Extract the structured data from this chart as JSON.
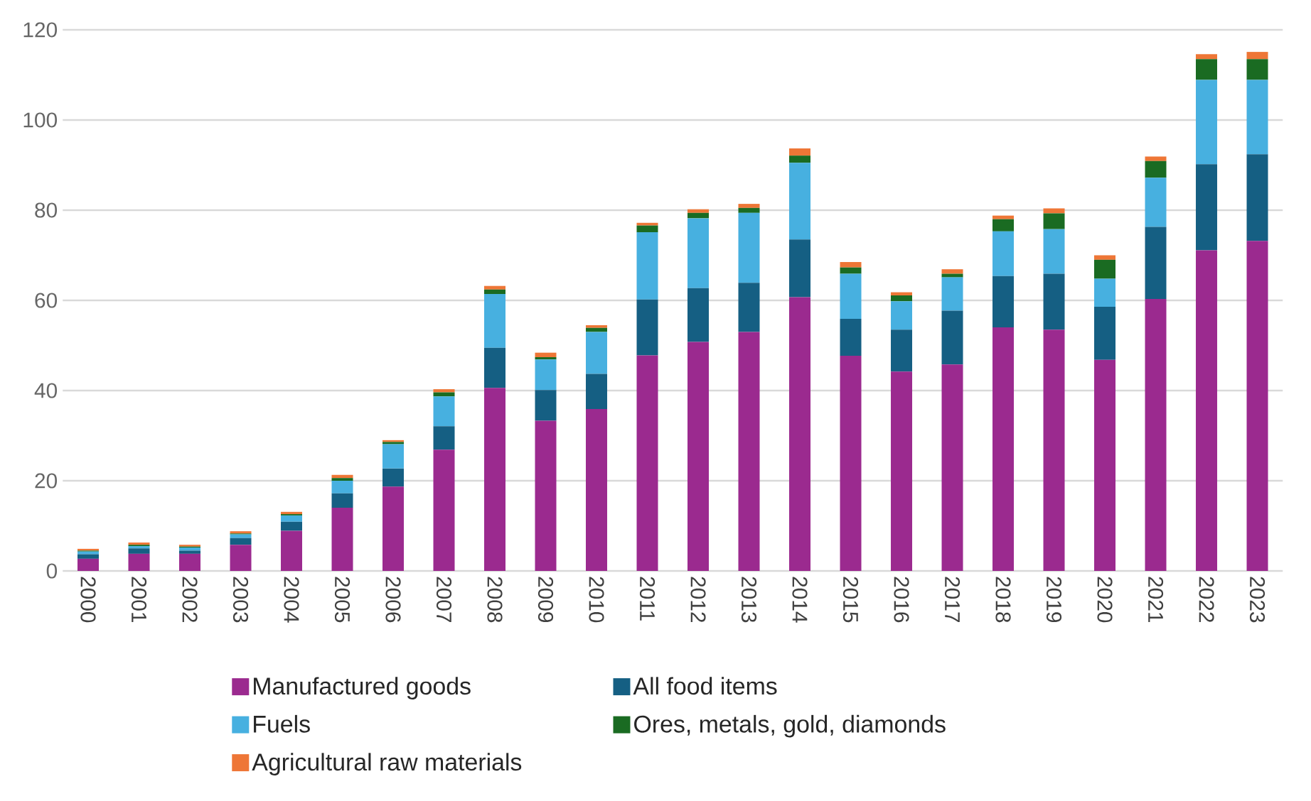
{
  "chart_data": {
    "type": "bar",
    "stacked": true,
    "categories": [
      "2000",
      "2001",
      "2002",
      "2003",
      "2004",
      "2005",
      "2006",
      "2007",
      "2008",
      "2009",
      "2010",
      "2011",
      "2012",
      "2013",
      "2014",
      "2015",
      "2016",
      "2017",
      "2018",
      "2019",
      "2020",
      "2021",
      "2022",
      "2023"
    ],
    "series": [
      {
        "name": "Manufactured goods",
        "color": "#9b2a8f",
        "values": [
          2.7,
          3.8,
          3.8,
          5.8,
          8.9,
          14.0,
          18.7,
          26.9,
          40.6,
          33.3,
          35.9,
          47.8,
          50.8,
          53.0,
          60.7,
          47.7,
          44.2,
          45.8,
          54.0,
          53.5,
          46.8,
          60.3,
          71.1,
          73.2
        ]
      },
      {
        "name": "All food items",
        "color": "#155f83",
        "values": [
          1.0,
          1.2,
          0.7,
          1.5,
          2.0,
          3.2,
          4.0,
          5.2,
          8.9,
          6.8,
          7.8,
          12.4,
          11.9,
          10.9,
          12.8,
          8.2,
          9.3,
          11.9,
          11.4,
          12.4,
          11.8,
          16.0,
          19.1,
          19.2
        ]
      },
      {
        "name": "Fuels",
        "color": "#47b0e0",
        "values": [
          0.6,
          0.5,
          0.7,
          0.8,
          1.4,
          2.8,
          5.4,
          6.6,
          11.9,
          6.8,
          9.3,
          14.9,
          15.5,
          15.5,
          17.0,
          10.0,
          6.3,
          7.4,
          9.9,
          9.9,
          6.2,
          10.9,
          18.7,
          16.5
        ]
      },
      {
        "name": "Ores, metals, gold, diamonds",
        "color": "#1a6b22",
        "values": [
          0.2,
          0.3,
          0.2,
          0.2,
          0.3,
          0.6,
          0.5,
          0.9,
          1.0,
          0.5,
          0.9,
          1.5,
          1.2,
          1.1,
          1.6,
          1.4,
          1.3,
          0.8,
          2.7,
          3.5,
          4.2,
          3.7,
          4.6,
          4.6
        ]
      },
      {
        "name": "Agricultural raw materials",
        "color": "#ee7636",
        "values": [
          0.4,
          0.5,
          0.4,
          0.5,
          0.5,
          0.7,
          0.4,
          0.7,
          0.8,
          1.0,
          0.6,
          0.6,
          0.8,
          0.9,
          1.6,
          1.2,
          0.7,
          1.0,
          0.8,
          1.1,
          1.0,
          1.0,
          1.1,
          1.6
        ]
      }
    ],
    "ylim": [
      0,
      120
    ],
    "yticks": [
      0,
      20,
      40,
      60,
      80,
      100,
      120
    ],
    "grid": "y",
    "legend": "bottom"
  }
}
